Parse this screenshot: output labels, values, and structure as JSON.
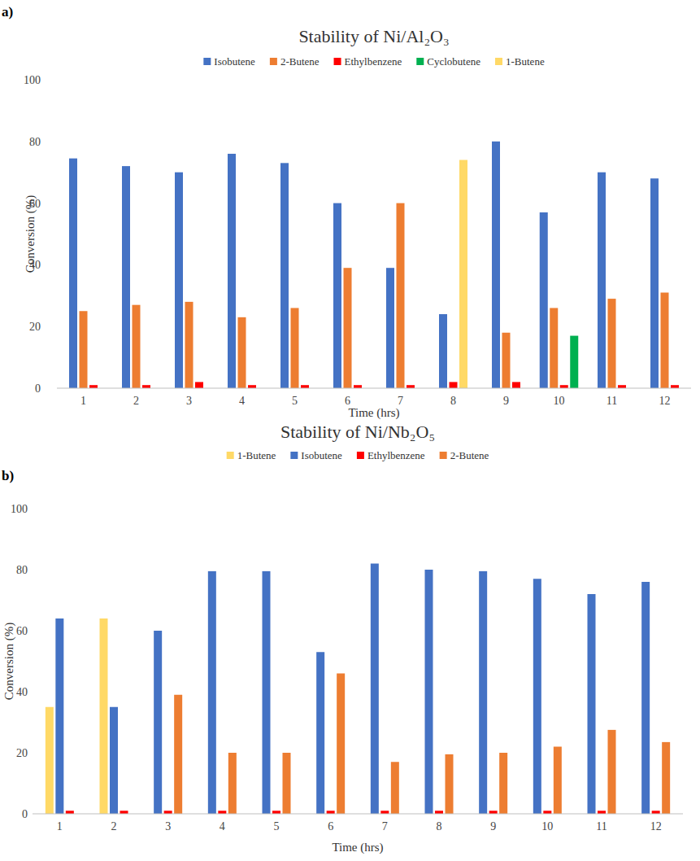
{
  "chart_data": [
    {
      "type": "bar",
      "panel_label": "a)",
      "title": "Stability of Ni/Al₂O₃",
      "x_label": "Time (hrs)",
      "y_label": "Conversion (%)",
      "categories": [
        "1",
        "2",
        "3",
        "4",
        "5",
        "6",
        "7",
        "8",
        "9",
        "10",
        "11",
        "12"
      ],
      "series": [
        {
          "name": "Isobutene",
          "color": "#4472c4",
          "values": [
            74.5,
            72,
            70,
            76,
            73,
            60,
            39,
            24,
            80,
            57,
            70,
            68
          ]
        },
        {
          "name": "2-Butene",
          "color": "#ed7d31",
          "values": [
            25,
            27,
            28,
            23,
            26,
            39,
            60,
            null,
            18,
            26,
            29,
            31
          ]
        },
        {
          "name": "Ethylbenzene",
          "color": "#ff0000",
          "values": [
            1,
            1,
            2,
            1,
            1,
            1,
            1,
            2,
            2,
            1,
            1,
            1
          ]
        },
        {
          "name": "Cyclobutene",
          "color": "#00b050",
          "values": [
            null,
            null,
            null,
            null,
            null,
            null,
            null,
            null,
            null,
            17,
            null,
            null
          ]
        },
        {
          "name": "1-Butene",
          "color": "#ffd966",
          "values": [
            null,
            null,
            null,
            null,
            null,
            null,
            null,
            74,
            null,
            null,
            null,
            null
          ]
        }
      ],
      "ylim": [
        0,
        100
      ],
      "yticks": [
        0,
        20,
        40,
        60,
        80,
        100
      ],
      "grid": false,
      "legend": "top"
    },
    {
      "type": "bar",
      "panel_label": "b)",
      "title": "Stability of Ni/Nb₂O₅",
      "x_label": "Time (hrs)",
      "y_label": "Conversion (%)",
      "categories": [
        "1",
        "2",
        "3",
        "4",
        "5",
        "6",
        "7",
        "8",
        "9",
        "10",
        "11",
        "12"
      ],
      "series": [
        {
          "name": "1-Butene",
          "color": "#ffd966",
          "values": [
            35,
            64,
            null,
            null,
            null,
            null,
            null,
            null,
            null,
            null,
            null,
            null
          ]
        },
        {
          "name": "Isobutene",
          "color": "#4472c4",
          "values": [
            64,
            35,
            60,
            79.5,
            79.5,
            53,
            82,
            80,
            79.5,
            77,
            72,
            76
          ]
        },
        {
          "name": "Ethylbenzene",
          "color": "#ff0000",
          "values": [
            1,
            1,
            1,
            1,
            1,
            1,
            1,
            1,
            1,
            1,
            1,
            1
          ]
        },
        {
          "name": "2-Butene",
          "color": "#ed7d31",
          "values": [
            null,
            null,
            39,
            20,
            20,
            46,
            17,
            19.5,
            20,
            22,
            27.5,
            23.5
          ]
        }
      ],
      "ylim": [
        0,
        100
      ],
      "yticks": [
        0,
        20,
        40,
        60,
        80,
        100
      ],
      "grid": false,
      "legend": "top"
    }
  ]
}
